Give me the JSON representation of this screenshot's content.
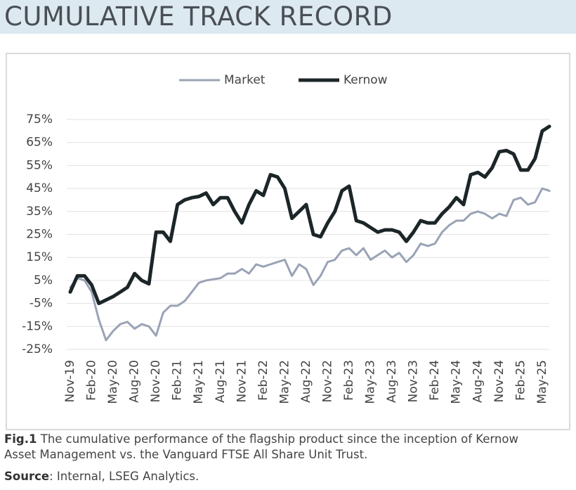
{
  "header": {
    "title": "CUMULATIVE TRACK RECORD"
  },
  "chart_data": {
    "type": "line",
    "categories": [
      "Nov-19",
      null,
      null,
      "Feb-20",
      null,
      null,
      "May-20",
      null,
      null,
      "Aug-20",
      null,
      null,
      "Nov-20",
      null,
      null,
      "Feb-21",
      null,
      null,
      "May-21",
      null,
      null,
      "Aug-21",
      null,
      null,
      "Nov-21",
      null,
      null,
      "Feb-22",
      null,
      null,
      "May-22",
      null,
      null,
      "Aug-22",
      null,
      null,
      "Nov-22",
      null,
      null,
      "Feb-23",
      null,
      null,
      "May-23",
      null,
      null,
      "Aug-23",
      null,
      null,
      "Nov-23",
      null,
      null,
      "Feb-24",
      null,
      null,
      "May-24",
      null,
      null,
      "Aug-24",
      null,
      null,
      "Nov-24",
      null,
      null,
      "Feb-25",
      null,
      null,
      "May-25",
      null
    ],
    "series": [
      {
        "name": "Market",
        "color": "#9aa3b5",
        "values": [
          2,
          6,
          5,
          0,
          -12,
          -21,
          -17,
          -14,
          -13,
          -16,
          -14,
          -15,
          -19,
          -9,
          -6,
          -6,
          -4,
          0,
          4,
          5,
          5.5,
          6,
          8,
          8,
          10,
          8,
          12,
          11,
          12,
          13,
          14,
          7,
          12,
          10,
          3,
          7,
          13,
          14,
          18,
          19,
          16,
          19,
          14,
          16,
          18,
          15,
          17,
          13,
          16,
          21,
          20,
          21,
          26,
          29,
          31,
          31,
          34,
          35,
          34,
          32,
          34,
          33,
          40,
          41,
          38,
          39,
          45,
          44
        ]
      },
      {
        "name": "Kernow",
        "color": "#1c2628",
        "values": [
          0,
          7,
          7,
          3,
          -5,
          -3.5,
          -2,
          0,
          2,
          8,
          5,
          3.5,
          26,
          26,
          22,
          38,
          40,
          41,
          41.5,
          43,
          38,
          41,
          41,
          35,
          30,
          38,
          44,
          42,
          51,
          50,
          45,
          32,
          35,
          38,
          25,
          24,
          30,
          35,
          44,
          46,
          31,
          30,
          28,
          26,
          27,
          27,
          26,
          22,
          26,
          31,
          30,
          30,
          34,
          37,
          41,
          38,
          51,
          52,
          50,
          54,
          61,
          61.5,
          60,
          53,
          53,
          58,
          70,
          72
        ]
      }
    ],
    "ylim": [
      -25,
      75
    ],
    "yticks": [
      {
        "value": -25,
        "label": "-25%"
      },
      {
        "value": -15,
        "label": "-15%"
      },
      {
        "value": -5,
        "label": "-5%"
      },
      {
        "value": 5,
        "label": "5%"
      },
      {
        "value": 15,
        "label": "15%"
      },
      {
        "value": 25,
        "label": "25%"
      },
      {
        "value": 35,
        "label": "35%"
      },
      {
        "value": 45,
        "label": "45%"
      },
      {
        "value": 55,
        "label": "55%"
      },
      {
        "value": 65,
        "label": "65%"
      },
      {
        "value": 75,
        "label": "75%"
      }
    ],
    "grid": true,
    "legend": "top"
  },
  "caption": {
    "label": "Fig.1",
    "text": "The cumulative performance of the flagship product since the inception of Kernow Asset Management vs. the Vanguard FTSE All Share Unit Trust."
  },
  "source": {
    "label": "Source",
    "text": ": Internal, LSEG Analytics."
  }
}
